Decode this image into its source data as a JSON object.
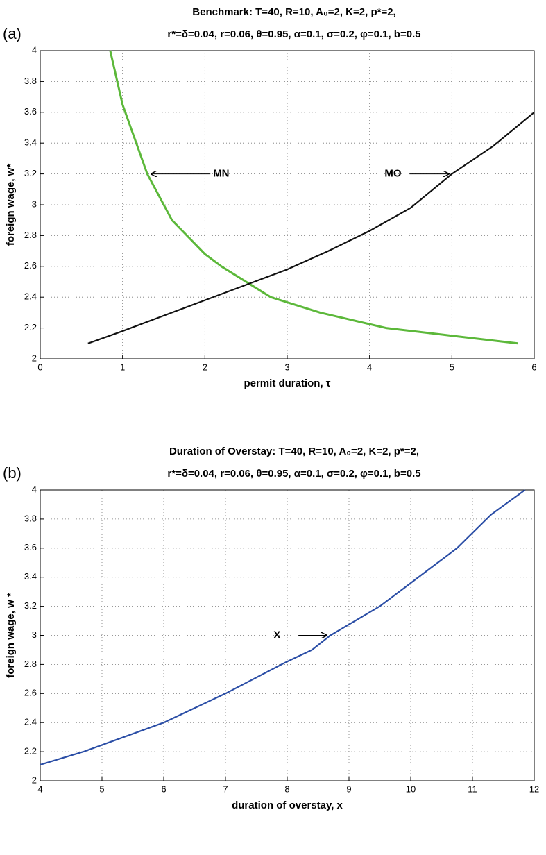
{
  "chart_data": [
    {
      "type": "line",
      "panel": "(a)",
      "title": [
        "Benchmark: T=40, R=10, A₀=2, K=2, p*=2,",
        "r*=δ=0.04, r=0.06, θ=0.95, α=0.1, σ=0.2, φ=0.1, b=0.5"
      ],
      "xlabel": "permit duration, τ",
      "ylabel": "foreign wage, w*",
      "xlim": [
        0,
        6
      ],
      "ylim": [
        2,
        4
      ],
      "xticks": [
        0,
        1,
        2,
        3,
        4,
        5,
        6
      ],
      "yticks": [
        2,
        2.2,
        2.4,
        2.6,
        2.8,
        3,
        3.2,
        3.4,
        3.6,
        3.8,
        4
      ],
      "grid": true,
      "series": [
        {
          "name": "MN",
          "color": "#5cb83a",
          "linewidth": 3,
          "x": [
            0.85,
            1,
            1.3,
            1.6,
            2,
            2.2,
            2.8,
            3.4,
            4.2,
            5,
            5.8
          ],
          "values": [
            4,
            3.65,
            3.2,
            2.9,
            2.68,
            2.6,
            2.4,
            2.3,
            2.2,
            2.15,
            2.1
          ]
        },
        {
          "name": "MO",
          "color": "#111111",
          "linewidth": 2.2,
          "x": [
            0.58,
            1,
            1.6,
            2,
            2.6,
            3,
            3.5,
            4,
            4.5,
            5,
            5.5,
            6
          ],
          "values": [
            2.1,
            2.18,
            2.3,
            2.38,
            2.5,
            2.58,
            2.7,
            2.83,
            2.98,
            3.2,
            3.38,
            3.6
          ]
        }
      ],
      "annotations": [
        {
          "text": "MN",
          "x": 1.34,
          "y": 3.2,
          "text_x": 2.1
        },
        {
          "text": "MO",
          "x": 4.97,
          "y": 3.2,
          "text_x": 4.2
        }
      ]
    },
    {
      "type": "line",
      "panel": "(b)",
      "title": [
        "Duration of Overstay: T=40, R=10, A₀=2, K=2, p*=2,",
        "r*=δ=0.04, r=0.06, θ=0.95, α=0.1, σ=0.2, φ=0.1, b=0.5"
      ],
      "xlabel": "duration of overstay, x",
      "ylabel": "foreign wage, w *",
      "xlim": [
        4,
        12
      ],
      "ylim": [
        2,
        4
      ],
      "xticks": [
        4,
        5,
        6,
        7,
        8,
        9,
        10,
        11,
        12
      ],
      "yticks": [
        2,
        2.2,
        2.4,
        2.6,
        2.8,
        3,
        3.2,
        3.4,
        3.6,
        3.8,
        4
      ],
      "grid": true,
      "series": [
        {
          "name": "X",
          "color": "#2b4ea6",
          "linewidth": 2.2,
          "x": [
            4,
            4.7,
            6,
            7,
            8,
            8.4,
            8.7,
            9.5,
            10,
            10.75,
            11.3,
            11.85
          ],
          "values": [
            2.11,
            2.2,
            2.4,
            2.6,
            2.82,
            2.9,
            3,
            3.2,
            3.36,
            3.6,
            3.83,
            4
          ]
        }
      ],
      "annotations": [
        {
          "text": "X",
          "x": 8.65,
          "y": 3,
          "text_x": 7.8
        }
      ]
    }
  ]
}
